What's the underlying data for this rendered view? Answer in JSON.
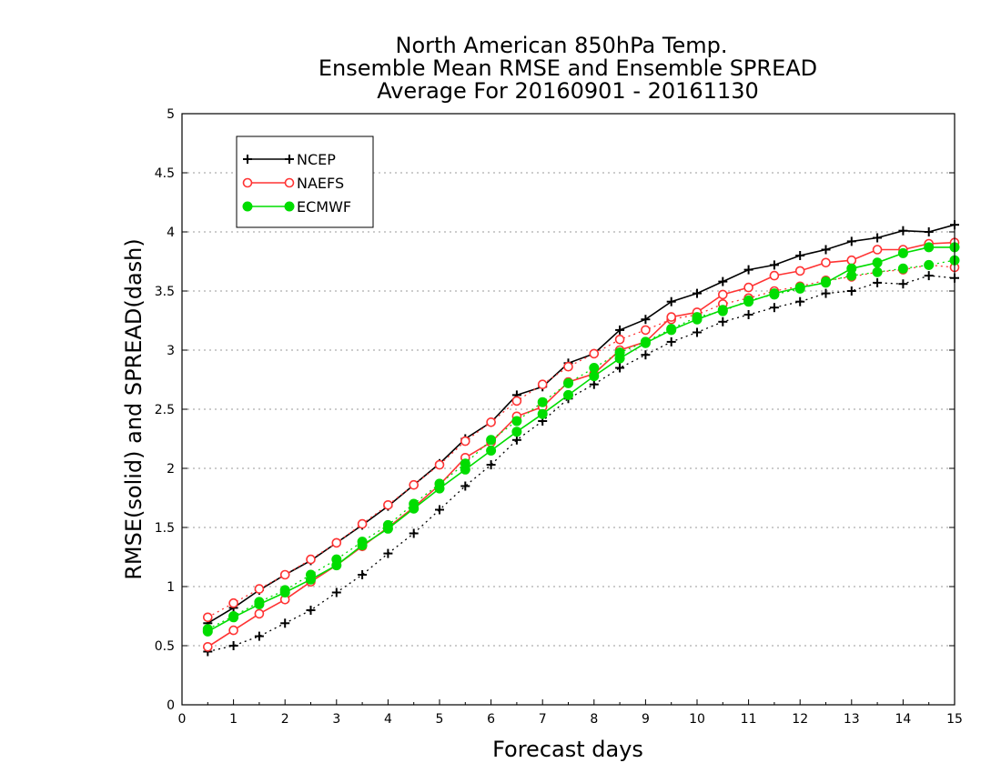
{
  "chart_data": {
    "type": "line",
    "title_lines": [
      "North American 850hPa Temp.",
      "Ensemble Mean RMSE and Ensemble SPREAD",
      "Average For 20160901 - 20161130"
    ],
    "xlabel": "Forecast days",
    "ylabel": "RMSE(solid) and SPREAD(dash)",
    "xlim": [
      0,
      15
    ],
    "ylim": [
      0,
      5
    ],
    "x_ticks": [
      "0",
      "1",
      "2",
      "3",
      "4",
      "5",
      "6",
      "7",
      "8",
      "9",
      "10",
      "11",
      "12",
      "13",
      "14",
      "15"
    ],
    "y_ticks": [
      "0",
      "0.5",
      "1",
      "1.5",
      "2",
      "2.5",
      "3",
      "3.5",
      "4",
      "4.5",
      "5"
    ],
    "grid": "horizontal dotted",
    "legend_placement": "top-left",
    "x": [
      0.5,
      1,
      1.5,
      2,
      2.5,
      3,
      3.5,
      4,
      4.5,
      5,
      5.5,
      6,
      6.5,
      7,
      7.5,
      8,
      8.5,
      9,
      9.5,
      10,
      10.5,
      11,
      11.5,
      12,
      12.5,
      13,
      13.5,
      14,
      14.5,
      15
    ],
    "series": [
      {
        "name": "NCEP",
        "color": "#000000",
        "marker": "plus",
        "rmse": [
          0.69,
          0.82,
          0.97,
          1.1,
          1.22,
          1.37,
          1.52,
          1.68,
          1.86,
          2.04,
          2.25,
          2.39,
          2.62,
          2.69,
          2.89,
          2.97,
          3.17,
          3.26,
          3.41,
          3.48,
          3.58,
          3.68,
          3.72,
          3.8,
          3.85,
          3.92,
          3.95,
          4.01,
          4.0,
          4.06
        ],
        "spread": [
          0.45,
          0.5,
          0.58,
          0.69,
          0.8,
          0.95,
          1.1,
          1.28,
          1.45,
          1.65,
          1.85,
          2.03,
          2.24,
          2.4,
          2.59,
          2.71,
          2.85,
          2.96,
          3.07,
          3.15,
          3.24,
          3.3,
          3.36,
          3.41,
          3.48,
          3.5,
          3.57,
          3.56,
          3.63,
          3.61
        ]
      },
      {
        "name": "NAEFS",
        "color": "#ff3333",
        "marker": "open-circle",
        "rmse": [
          0.49,
          0.63,
          0.77,
          0.89,
          1.04,
          1.18,
          1.34,
          1.5,
          1.67,
          1.86,
          2.09,
          2.22,
          2.44,
          2.52,
          2.73,
          2.8,
          3.0,
          3.07,
          3.28,
          3.32,
          3.47,
          3.53,
          3.63,
          3.67,
          3.74,
          3.76,
          3.85,
          3.85,
          3.9,
          3.91
        ],
        "spread": [
          0.74,
          0.86,
          0.98,
          1.1,
          1.23,
          1.37,
          1.53,
          1.69,
          1.86,
          2.03,
          2.23,
          2.39,
          2.57,
          2.71,
          2.86,
          2.97,
          3.09,
          3.17,
          3.26,
          3.3,
          3.39,
          3.44,
          3.5,
          3.54,
          3.59,
          3.62,
          3.66,
          3.68,
          3.72,
          3.7
        ]
      },
      {
        "name": "ECMWF",
        "color": "#00dd00",
        "marker": "filled-circle",
        "rmse": [
          0.62,
          0.74,
          0.85,
          0.95,
          1.06,
          1.18,
          1.35,
          1.49,
          1.66,
          1.83,
          1.99,
          2.15,
          2.31,
          2.46,
          2.62,
          2.78,
          2.93,
          3.06,
          3.17,
          3.26,
          3.34,
          3.41,
          3.48,
          3.53,
          3.57,
          3.69,
          3.74,
          3.82,
          3.87,
          3.87
        ],
        "spread": [
          0.64,
          0.75,
          0.87,
          0.97,
          1.1,
          1.23,
          1.38,
          1.52,
          1.7,
          1.87,
          2.04,
          2.24,
          2.4,
          2.56,
          2.72,
          2.85,
          2.98,
          3.07,
          3.18,
          3.28,
          3.33,
          3.42,
          3.47,
          3.52,
          3.58,
          3.63,
          3.66,
          3.69,
          3.72,
          3.76
        ]
      }
    ]
  }
}
